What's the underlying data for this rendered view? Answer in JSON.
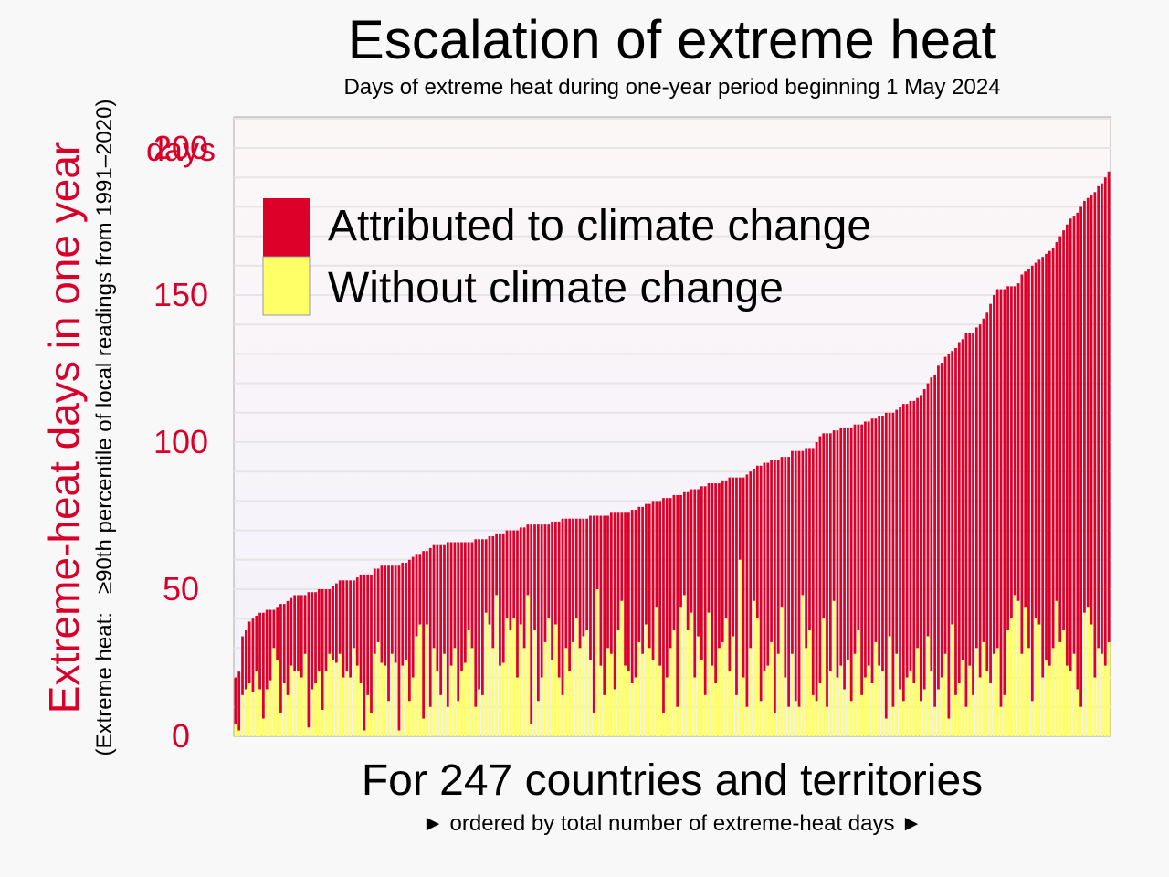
{
  "chart_data": {
    "type": "bar",
    "stacked": true,
    "title": "Escalation of extreme heat",
    "subtitle": "Days of extreme heat during one-year period beginning 1 May 2024",
    "ylabel": "Extreme-heat days in one year",
    "ylabel_note": "(Extreme heat:   ≥90th percentile of local readings from 1991–2020)",
    "xlabel": "For 247 countries and territories",
    "xlabel_note": "► ordered by total number of extreme-heat days ►",
    "y_unit_label": "days",
    "ylim": [
      0,
      200
    ],
    "yticks": [
      0,
      50,
      100,
      150,
      200
    ],
    "grid": true,
    "legend_position": "top-left",
    "colors": {
      "attributed": "#dd0028",
      "without": "#ffff66"
    },
    "series": [
      {
        "name": "Attributed to climate change",
        "key": "attributed",
        "color": "#dd0028"
      },
      {
        "name": "Without climate change",
        "key": "without",
        "color": "#ffff66"
      }
    ],
    "totals": [
      20,
      22,
      34,
      36,
      39,
      40,
      41,
      42,
      42,
      43,
      43,
      43,
      44,
      45,
      45,
      46,
      47,
      48,
      48,
      48,
      48,
      49,
      49,
      49,
      50,
      50,
      50,
      50,
      51,
      52,
      53,
      53,
      53,
      53,
      53,
      54,
      55,
      55,
      55,
      55,
      57,
      57,
      58,
      58,
      58,
      58,
      58,
      58,
      59,
      59,
      60,
      61,
      62,
      62,
      63,
      63,
      64,
      65,
      65,
      65,
      65,
      66,
      66,
      66,
      66,
      66,
      66,
      66,
      66,
      67,
      67,
      67,
      67,
      68,
      68,
      69,
      69,
      69,
      70,
      70,
      70,
      70,
      71,
      71,
      72,
      72,
      72,
      72,
      72,
      72,
      72,
      73,
      73,
      73,
      74,
      74,
      74,
      74,
      74,
      74,
      74,
      74,
      75,
      75,
      75,
      75,
      75,
      75,
      76,
      76,
      76,
      76,
      76,
      76,
      77,
      77,
      78,
      78,
      79,
      79,
      80,
      80,
      80,
      81,
      81,
      81,
      82,
      82,
      82,
      83,
      83,
      84,
      84,
      84,
      85,
      85,
      86,
      86,
      86,
      86,
      87,
      87,
      88,
      88,
      88,
      88,
      88,
      89,
      90,
      91,
      92,
      92,
      93,
      93,
      94,
      94,
      94,
      95,
      95,
      95,
      97,
      97,
      97,
      97,
      98,
      98,
      98,
      100,
      102,
      103,
      103,
      103,
      104,
      104,
      105,
      105,
      105,
      105,
      106,
      106,
      106,
      107,
      107,
      108,
      108,
      109,
      109,
      110,
      110,
      110,
      111,
      112,
      113,
      113,
      114,
      114,
      115,
      116,
      118,
      120,
      122,
      123,
      126,
      127,
      129,
      130,
      131,
      132,
      134,
      135,
      137,
      137,
      137,
      139,
      140,
      142,
      144,
      147,
      150,
      152,
      152,
      152,
      153,
      153,
      153,
      154,
      157,
      158,
      159,
      160,
      161,
      162,
      163,
      164,
      165,
      166,
      168,
      170,
      172,
      174,
      176,
      177,
      178,
      180,
      182,
      183,
      184,
      185,
      187,
      188,
      190,
      192
    ],
    "without_climate_change": [
      4,
      2,
      14,
      16,
      18,
      15,
      22,
      16,
      6,
      16,
      19,
      30,
      26,
      8,
      18,
      14,
      24,
      22,
      22,
      20,
      28,
      3,
      16,
      18,
      22,
      9,
      22,
      28,
      26,
      25,
      28,
      20,
      22,
      20,
      30,
      24,
      18,
      2,
      14,
      8,
      28,
      32,
      25,
      24,
      12,
      28,
      25,
      2,
      24,
      26,
      12,
      20,
      34,
      38,
      6,
      38,
      10,
      30,
      22,
      14,
      28,
      10,
      24,
      30,
      12,
      22,
      25,
      36,
      30,
      10,
      16,
      14,
      42,
      38,
      30,
      48,
      24,
      25,
      40,
      36,
      40,
      20,
      38,
      30,
      48,
      4,
      36,
      12,
      20,
      32,
      40,
      26,
      38,
      20,
      14,
      30,
      22,
      32,
      40,
      30,
      34,
      36,
      26,
      8,
      50,
      24,
      14,
      30,
      28,
      16,
      36,
      46,
      24,
      22,
      18,
      20,
      32,
      28,
      38,
      30,
      26,
      44,
      24,
      8,
      20,
      30,
      36,
      10,
      44,
      48,
      36,
      42,
      20,
      34,
      26,
      14,
      42,
      24,
      18,
      30,
      32,
      40,
      22,
      34,
      14,
      60,
      20,
      10,
      30,
      46,
      40,
      12,
      22,
      24,
      32,
      8,
      28,
      44,
      20,
      10,
      28,
      12,
      10,
      48,
      30,
      36,
      14,
      12,
      18,
      40,
      10,
      22,
      46,
      20,
      24,
      16,
      26,
      12,
      28,
      36,
      14,
      20,
      24,
      18,
      32,
      24,
      22,
      6,
      34,
      10,
      28,
      16,
      12,
      20,
      22,
      18,
      30,
      12,
      16,
      34,
      22,
      10,
      16,
      20,
      28,
      6,
      38,
      14,
      18,
      26,
      10,
      24,
      14,
      30,
      20,
      32,
      22,
      18,
      28,
      30,
      10,
      14,
      36,
      40,
      48,
      46,
      28,
      44,
      30,
      12,
      40,
      38,
      20,
      26,
      24,
      30,
      46,
      32,
      36,
      24,
      22,
      28,
      16,
      10,
      42,
      44,
      38,
      20,
      30,
      28,
      24,
      32,
      44,
      36,
      30,
      40
    ]
  }
}
